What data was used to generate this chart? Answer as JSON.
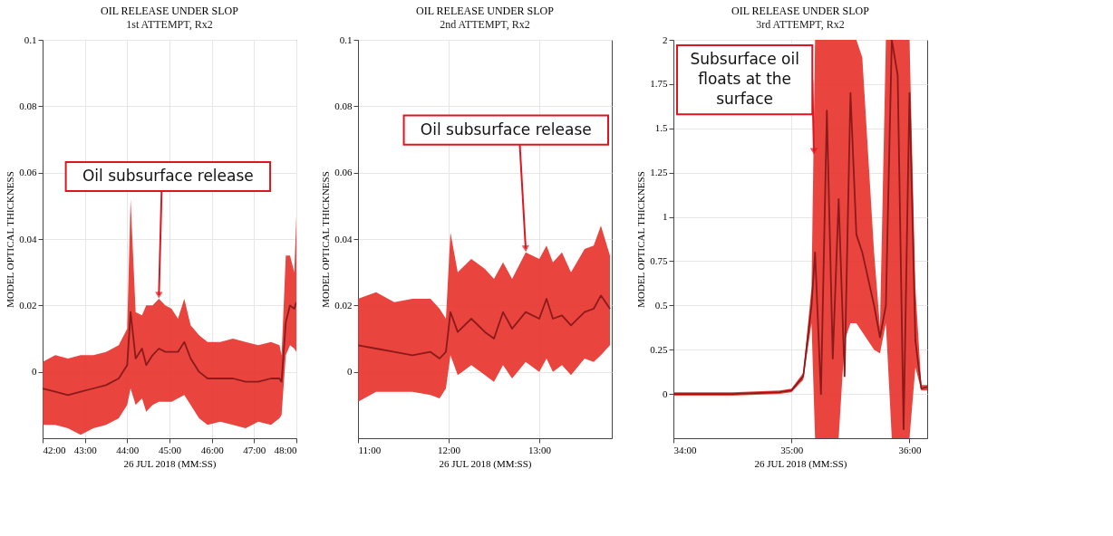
{
  "chart_data": [
    {
      "type": "line",
      "title": "OIL RELEASE UNDER SLOP",
      "subtitle": "1st ATTEMPT, Rx2",
      "xlabel": "26 JUL 2018 (MM:SS)",
      "ylabel": "MODEL OPTICAL THICKNESS",
      "xlim": [
        42,
        48
      ],
      "xticks": [
        {
          "value": 42,
          "label": "42:00"
        },
        {
          "value": 43,
          "label": "43:00"
        },
        {
          "value": 44,
          "label": "44:00"
        },
        {
          "value": 45,
          "label": "45:00"
        },
        {
          "value": 46,
          "label": "46:00"
        },
        {
          "value": 47,
          "label": "47:00"
        },
        {
          "value": 48,
          "label": "48:00"
        }
      ],
      "ylim": [
        -0.02,
        0.1
      ],
      "yticks": [
        0,
        0.02,
        0.04,
        0.06,
        0.08,
        0.1
      ],
      "grid": true,
      "series": [
        {
          "color": "#8b1a1a",
          "x": [
            42.0,
            42.3,
            42.6,
            42.9,
            43.2,
            43.5,
            43.8,
            44.0,
            44.08,
            44.2,
            44.35,
            44.45,
            44.6,
            44.75,
            44.9,
            45.05,
            45.2,
            45.35,
            45.5,
            45.7,
            45.9,
            46.2,
            46.5,
            46.8,
            47.1,
            47.4,
            47.6,
            47.65,
            47.75,
            47.85,
            47.95,
            48.0
          ],
          "values": [
            -0.005,
            -0.006,
            -0.007,
            -0.006,
            -0.005,
            -0.004,
            -0.002,
            0.002,
            0.018,
            0.004,
            0.007,
            0.002,
            0.005,
            0.007,
            0.006,
            0.006,
            0.006,
            0.009,
            0.004,
            0.0,
            -0.002,
            -0.002,
            -0.002,
            -0.003,
            -0.003,
            -0.002,
            -0.002,
            -0.003,
            0.015,
            0.02,
            0.019,
            0.021
          ],
          "lower": [
            -0.016,
            -0.016,
            -0.017,
            -0.019,
            -0.017,
            -0.016,
            -0.014,
            -0.01,
            -0.005,
            -0.01,
            -0.008,
            -0.012,
            -0.01,
            -0.009,
            -0.009,
            -0.009,
            -0.008,
            -0.007,
            -0.01,
            -0.014,
            -0.016,
            -0.015,
            -0.016,
            -0.017,
            -0.015,
            -0.016,
            -0.014,
            -0.013,
            0.005,
            0.008,
            0.007,
            0.006
          ],
          "upper": [
            0.003,
            0.005,
            0.004,
            0.005,
            0.005,
            0.006,
            0.008,
            0.013,
            0.052,
            0.018,
            0.017,
            0.02,
            0.02,
            0.022,
            0.02,
            0.019,
            0.016,
            0.022,
            0.014,
            0.011,
            0.009,
            0.009,
            0.01,
            0.009,
            0.008,
            0.009,
            0.008,
            0.005,
            0.035,
            0.035,
            0.03,
            0.047
          ]
        }
      ],
      "annotations": [
        {
          "text": "Oil subsurface release",
          "x": 44.75,
          "y": 0.022
        }
      ]
    },
    {
      "type": "line",
      "title": "OIL RELEASE UNDER SLOP",
      "subtitle": "2nd ATTEMPT, Rx2",
      "xlabel": "26 JUL 2018 (MM:SS)",
      "ylabel": "MODEL OPTICAL THICKNESS",
      "xlim": [
        11,
        13.8
      ],
      "xticks": [
        {
          "value": 11,
          "label": "11:00"
        },
        {
          "value": 12,
          "label": "12:00"
        },
        {
          "value": 13,
          "label": "13:00"
        }
      ],
      "ylim": [
        -0.02,
        0.1
      ],
      "yticks": [
        0,
        0.02,
        0.04,
        0.06,
        0.08,
        0.1
      ],
      "grid": true,
      "series": [
        {
          "color": "#8b1a1a",
          "x": [
            11.0,
            11.2,
            11.4,
            11.6,
            11.8,
            11.9,
            11.97,
            12.02,
            12.1,
            12.25,
            12.4,
            12.5,
            12.6,
            12.7,
            12.85,
            13.0,
            13.08,
            13.15,
            13.25,
            13.35,
            13.5,
            13.6,
            13.68,
            13.78
          ],
          "values": [
            0.008,
            0.007,
            0.006,
            0.005,
            0.006,
            0.004,
            0.006,
            0.018,
            0.012,
            0.016,
            0.012,
            0.01,
            0.018,
            0.013,
            0.018,
            0.016,
            0.022,
            0.016,
            0.017,
            0.014,
            0.018,
            0.019,
            0.023,
            0.019
          ],
          "lower": [
            -0.009,
            -0.006,
            -0.006,
            -0.006,
            -0.007,
            -0.008,
            -0.005,
            0.005,
            -0.001,
            0.002,
            -0.001,
            -0.003,
            0.002,
            -0.002,
            0.003,
            0.0,
            0.004,
            0.0,
            0.002,
            -0.001,
            0.004,
            0.003,
            0.005,
            0.008
          ],
          "upper": [
            0.022,
            0.024,
            0.021,
            0.022,
            0.022,
            0.019,
            0.016,
            0.042,
            0.03,
            0.034,
            0.031,
            0.028,
            0.033,
            0.028,
            0.036,
            0.034,
            0.038,
            0.033,
            0.036,
            0.03,
            0.037,
            0.038,
            0.044,
            0.035
          ]
        }
      ],
      "annotations": [
        {
          "text": "Oil subsurface release",
          "x": 12.85,
          "y": 0.036
        }
      ]
    },
    {
      "type": "line",
      "title": "OIL RELEASE UNDER SLOP",
      "subtitle": "3rd ATTEMPT, Rx2",
      "xlabel": "26 JUL 2018 (MM:SS)",
      "ylabel": "MODEL OPTICAL THICKNESS",
      "xlim": [
        34,
        36.15
      ],
      "xticks": [
        {
          "value": 34,
          "label": "34:00"
        },
        {
          "value": 35,
          "label": "35:00"
        },
        {
          "value": 36,
          "label": "36:00"
        }
      ],
      "ylim": [
        -0.25,
        2
      ],
      "yticks": [
        0,
        0.25,
        0.5,
        0.75,
        1,
        1.25,
        1.5,
        1.75,
        2
      ],
      "grid": true,
      "series": [
        {
          "color": "#8b1a1a",
          "x": [
            34.0,
            34.5,
            34.9,
            35.0,
            35.1,
            35.17,
            35.2,
            35.25,
            35.3,
            35.35,
            35.4,
            35.45,
            35.5,
            35.55,
            35.6,
            35.7,
            35.75,
            35.8,
            35.85,
            35.9,
            35.95,
            36.0,
            36.05,
            36.1,
            36.15
          ],
          "values": [
            0.0,
            0.0,
            0.01,
            0.02,
            0.1,
            0.5,
            0.8,
            0.0,
            1.6,
            0.2,
            1.1,
            0.1,
            1.7,
            0.9,
            0.8,
            0.5,
            0.32,
            0.5,
            2.0,
            1.8,
            -0.2,
            1.7,
            0.3,
            0.03,
            0.04
          ],
          "lower": [
            -0.01,
            -0.01,
            0.0,
            0.01,
            0.08,
            0.4,
            -0.25,
            -0.25,
            -0.25,
            -0.25,
            -0.25,
            0.3,
            0.4,
            0.4,
            0.35,
            0.25,
            0.23,
            0.4,
            -0.25,
            -0.25,
            -0.25,
            -0.25,
            0.15,
            0.02,
            0.02
          ],
          "upper": [
            0.01,
            0.01,
            0.02,
            0.03,
            0.12,
            0.6,
            2,
            2,
            2,
            2,
            2,
            2,
            2,
            2,
            1.9,
            0.8,
            0.38,
            2,
            2,
            2,
            2,
            2,
            0.6,
            0.05,
            0.05
          ]
        }
      ],
      "annotations": [
        {
          "text": "Subsurface oil floats at the surface",
          "x": 35.19,
          "y": 1.35
        }
      ]
    }
  ]
}
